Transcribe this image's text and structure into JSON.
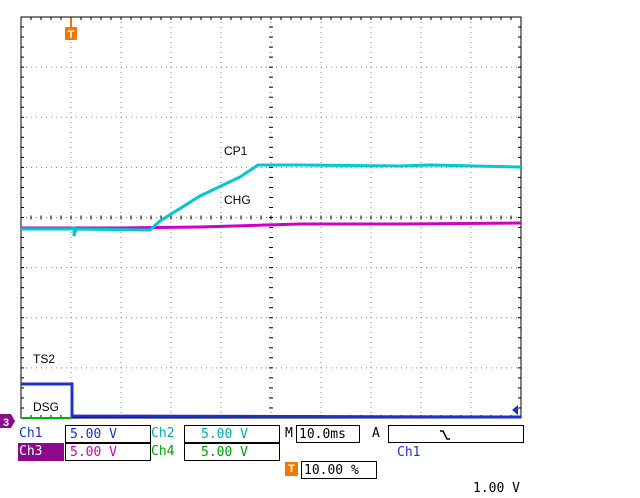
{
  "traces": {
    "cp1_label": "CP1",
    "chg_label": "CHG",
    "ts2_label": "TS2",
    "dsg_label": "DSG"
  },
  "markers": {
    "trigger_icon": "T",
    "channel_ground_ref": "3"
  },
  "status": {
    "ch1": {
      "name": "Ch1",
      "scale": "5.00 V"
    },
    "ch2": {
      "name": "Ch2",
      "scale": "5.00 V"
    },
    "ch3": {
      "name": "Ch3",
      "scale": "5.00 V"
    },
    "ch4": {
      "name": "Ch4",
      "scale": "5.00 V"
    },
    "timebase": {
      "prefix": "M",
      "value": "10.0ms"
    },
    "trigger": {
      "mode": "A",
      "source": "Ch1",
      "slope_icon": "falling-edge-icon",
      "level": "1.00 V"
    },
    "trigger_position": {
      "icon": "T",
      "value": "10.00 %"
    }
  },
  "colors": {
    "ch1": "#1f2fd0",
    "ch2": "#00c8d4",
    "ch3": "#d000c8",
    "ch4": "#00b400",
    "trigger_marker": "#f07800",
    "grid": "#808080"
  }
}
